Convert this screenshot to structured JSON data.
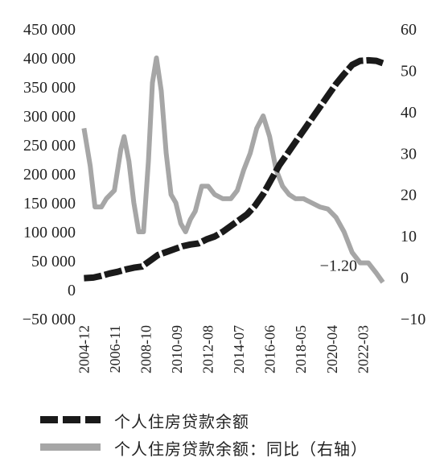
{
  "chart_data": {
    "type": "line",
    "left_axis": {
      "ticks": [
        "450 000",
        "400 000",
        "350 000",
        "300 000",
        "250 000",
        "200 000",
        "150 000",
        "100 000",
        "50 000",
        "0",
        "−50 000"
      ],
      "ylim": [
        -50000,
        450000
      ]
    },
    "right_axis": {
      "ticks": [
        "60",
        "50",
        "40",
        "30",
        "20",
        "10",
        "0",
        "−10"
      ],
      "ylim": [
        -10,
        60
      ]
    },
    "x_tick_labels": [
      "2004-12",
      "2006-11",
      "2008-10",
      "2010-09",
      "2012-08",
      "2014-07",
      "2016-06",
      "2018-05",
      "2020-04",
      "2022-03"
    ],
    "xlim": [
      2004.6,
      2023.7
    ],
    "series": [
      {
        "name": "个人住房贷款余额",
        "axis": "left",
        "color": "#1a1a1a",
        "style": "dashed",
        "points": [
          [
            2004.92,
            20000
          ],
          [
            2005.5,
            21000
          ],
          [
            2006.0,
            24000
          ],
          [
            2006.5,
            28000
          ],
          [
            2007.0,
            31000
          ],
          [
            2007.5,
            35000
          ],
          [
            2008.0,
            38000
          ],
          [
            2008.5,
            40000
          ],
          [
            2009.0,
            50000
          ],
          [
            2009.5,
            60000
          ],
          [
            2010.0,
            65000
          ],
          [
            2010.5,
            70000
          ],
          [
            2011.0,
            75000
          ],
          [
            2011.5,
            78000
          ],
          [
            2012.0,
            80000
          ],
          [
            2012.5,
            87000
          ],
          [
            2013.0,
            92000
          ],
          [
            2013.5,
            100000
          ],
          [
            2014.0,
            110000
          ],
          [
            2014.5,
            120000
          ],
          [
            2015.0,
            130000
          ],
          [
            2015.5,
            145000
          ],
          [
            2016.0,
            165000
          ],
          [
            2016.5,
            190000
          ],
          [
            2017.0,
            215000
          ],
          [
            2017.5,
            235000
          ],
          [
            2018.0,
            255000
          ],
          [
            2018.5,
            275000
          ],
          [
            2019.0,
            295000
          ],
          [
            2019.5,
            315000
          ],
          [
            2020.0,
            335000
          ],
          [
            2020.5,
            355000
          ],
          [
            2021.0,
            372000
          ],
          [
            2021.5,
            388000
          ],
          [
            2022.0,
            395000
          ],
          [
            2022.5,
            396000
          ],
          [
            2023.0,
            395000
          ],
          [
            2023.4,
            391000
          ]
        ]
      },
      {
        "name": "个人住房贷款余额：同比（右轴）",
        "axis": "right",
        "color": "#a6a6a6",
        "style": "solid",
        "points": [
          [
            2004.92,
            36
          ],
          [
            2005.3,
            27
          ],
          [
            2005.6,
            17
          ],
          [
            2006.0,
            17
          ],
          [
            2006.3,
            19
          ],
          [
            2006.8,
            21
          ],
          [
            2007.2,
            31
          ],
          [
            2007.4,
            34
          ],
          [
            2007.7,
            28
          ],
          [
            2008.0,
            18
          ],
          [
            2008.3,
            11
          ],
          [
            2008.6,
            11
          ],
          [
            2008.9,
            28
          ],
          [
            2009.15,
            47
          ],
          [
            2009.4,
            53
          ],
          [
            2009.7,
            45
          ],
          [
            2010.0,
            30
          ],
          [
            2010.3,
            20
          ],
          [
            2010.6,
            18
          ],
          [
            2010.9,
            13
          ],
          [
            2011.2,
            11
          ],
          [
            2011.5,
            14
          ],
          [
            2011.8,
            16
          ],
          [
            2012.2,
            22
          ],
          [
            2012.6,
            22
          ],
          [
            2013.0,
            20
          ],
          [
            2013.5,
            19
          ],
          [
            2014.0,
            19
          ],
          [
            2014.4,
            21
          ],
          [
            2014.8,
            26
          ],
          [
            2015.2,
            30
          ],
          [
            2015.6,
            36
          ],
          [
            2016.0,
            39
          ],
          [
            2016.4,
            34
          ],
          [
            2016.8,
            26
          ],
          [
            2017.2,
            22
          ],
          [
            2017.6,
            20
          ],
          [
            2018.0,
            19
          ],
          [
            2018.5,
            19
          ],
          [
            2019.0,
            18
          ],
          [
            2019.5,
            17
          ],
          [
            2020.0,
            16.5
          ],
          [
            2020.5,
            14.5
          ],
          [
            2021.0,
            11
          ],
          [
            2021.5,
            6
          ],
          [
            2022.0,
            3.5
          ],
          [
            2022.5,
            3.5
          ],
          [
            2023.0,
            1
          ],
          [
            2023.4,
            -1.2
          ]
        ]
      }
    ],
    "annotations": [
      {
        "text": "−1.20",
        "x": 2023.4,
        "y": -1.2,
        "axis": "right"
      }
    ],
    "grid": false,
    "legend_placement": "bottom"
  },
  "legend": {
    "items": [
      {
        "label": "个人住房贷款余额",
        "style": "dashed"
      },
      {
        "label": "个人住房贷款余额：同比（右轴）",
        "style": "solid"
      }
    ]
  }
}
